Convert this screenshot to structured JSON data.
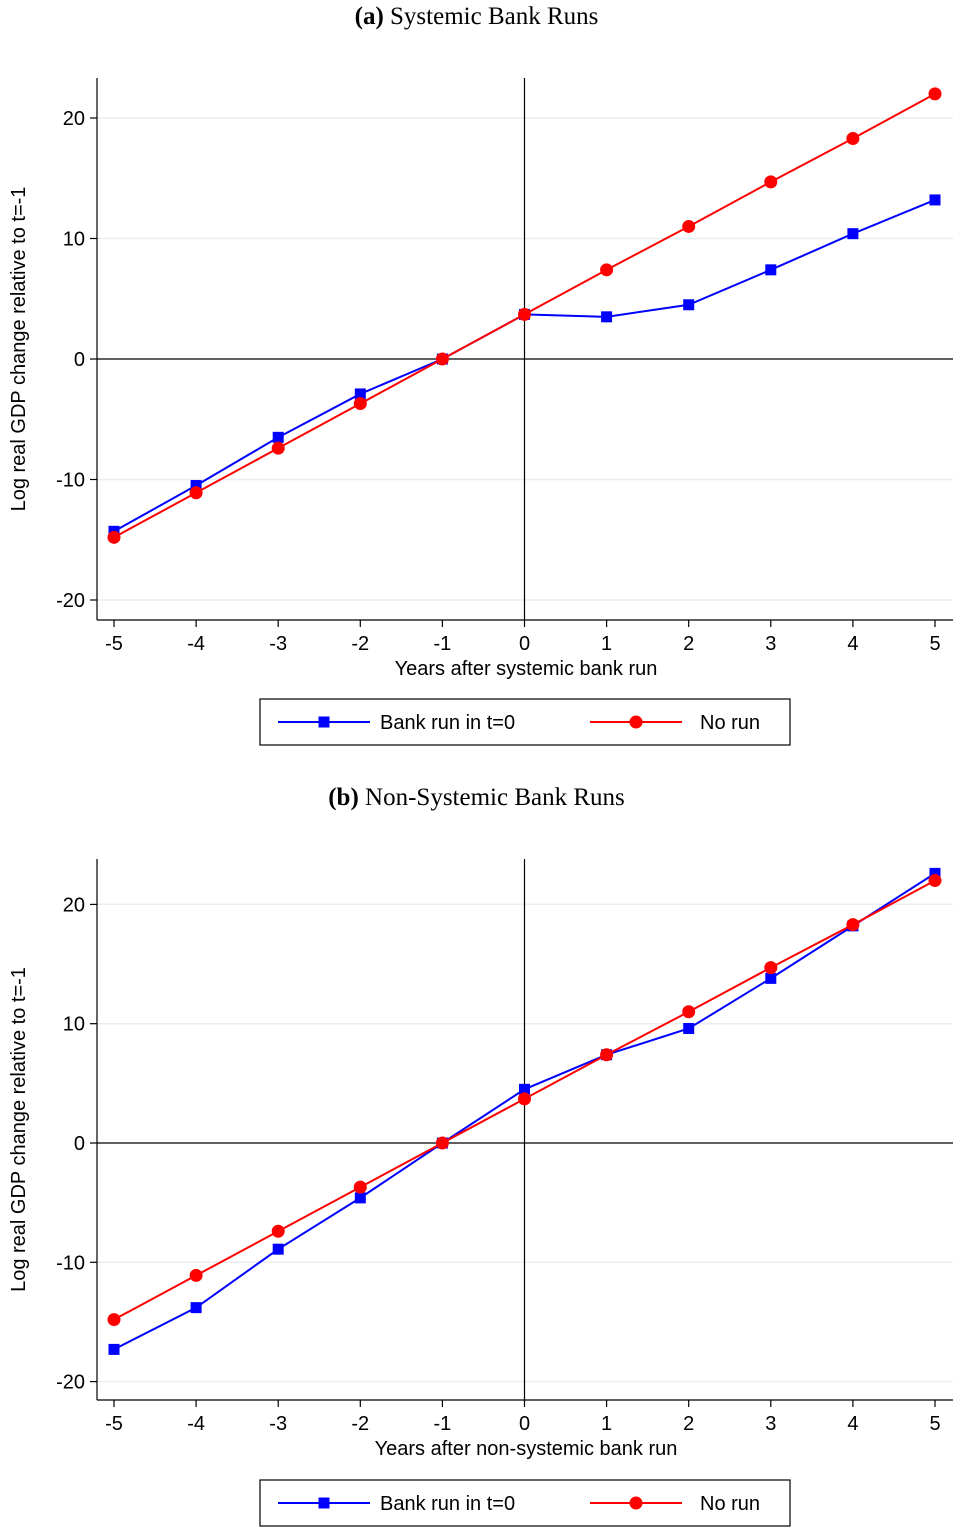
{
  "chart_data": [
    {
      "type": "line",
      "panel_tag": "(a)",
      "title": "Systemic Bank Runs",
      "xlabel": "Years after systemic bank run",
      "ylabel": "Log real GDP change relative to t=-1",
      "x": [
        -5,
        -4,
        -3,
        -2,
        -1,
        0,
        1,
        2,
        3,
        4,
        5
      ],
      "xlim": [
        -5,
        5
      ],
      "ylim": [
        -20,
        20
      ],
      "x_ticks": [
        "-5",
        "-4",
        "-3",
        "-2",
        "-1",
        "0",
        "1",
        "2",
        "3",
        "4",
        "5"
      ],
      "y_ticks": [
        "20",
        "10",
        "0",
        "-10",
        "-20"
      ],
      "grid": true,
      "legend_position": "bottom",
      "series": [
        {
          "name": "Bank run in t=0",
          "color": "#0000ff",
          "marker": "square",
          "values": [
            -14.3,
            -10.5,
            -6.5,
            -2.9,
            0.0,
            3.7,
            3.5,
            4.5,
            7.4,
            10.4,
            13.2
          ]
        },
        {
          "name": "No run",
          "color": "#ff0000",
          "marker": "circle",
          "values": [
            -14.8,
            -11.1,
            -7.4,
            -3.7,
            0.0,
            3.7,
            7.4,
            11.0,
            14.7,
            18.3,
            22.0
          ]
        }
      ]
    },
    {
      "type": "line",
      "panel_tag": "(b)",
      "title": "Non-Systemic Bank Runs",
      "xlabel": "Years after non-systemic bank run",
      "ylabel": "Log real GDP change relative to t=-1",
      "x": [
        -5,
        -4,
        -3,
        -2,
        -1,
        0,
        1,
        2,
        3,
        4,
        5
      ],
      "xlim": [
        -5,
        5
      ],
      "ylim": [
        -20,
        20
      ],
      "x_ticks": [
        "-5",
        "-4",
        "-3",
        "-2",
        "-1",
        "0",
        "1",
        "2",
        "3",
        "4",
        "5"
      ],
      "y_ticks": [
        "20",
        "10",
        "0",
        "-10",
        "-20"
      ],
      "grid": true,
      "legend_position": "bottom",
      "series": [
        {
          "name": "Bank run in t=0",
          "color": "#0000ff",
          "marker": "square",
          "values": [
            -17.3,
            -13.8,
            -8.9,
            -4.6,
            0.0,
            4.5,
            7.4,
            9.6,
            13.8,
            18.2,
            22.6
          ]
        },
        {
          "name": "No run",
          "color": "#ff0000",
          "marker": "circle",
          "values": [
            -14.8,
            -11.1,
            -7.4,
            -3.7,
            0.0,
            3.7,
            7.4,
            11.0,
            14.7,
            18.3,
            22.0
          ]
        }
      ]
    }
  ]
}
